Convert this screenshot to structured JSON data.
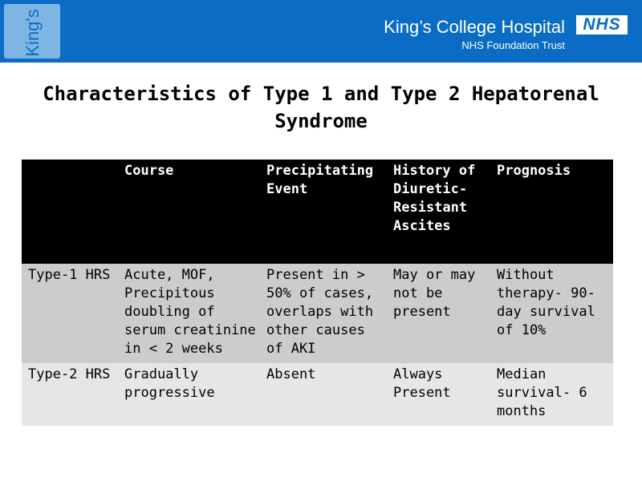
{
  "header": {
    "logo_text": "King's",
    "hospital_name": "King’s College Hospital",
    "trust_name": "NHS Foundation Trust",
    "nhs_logo": "NHS",
    "banner_color": "#0a6cc4"
  },
  "slide": {
    "title_line1": "Characteristics of Type 1 and Type 2 Hepatorenal",
    "title_line2": "Syndrome"
  },
  "table": {
    "columns": [
      "",
      "Course",
      "Precipitating Event",
      "History of Diuretic-Resistant Ascites",
      "Prognosis"
    ],
    "rows": [
      {
        "type": "Type-1 HRS",
        "course": "Acute, MOF, Precipitous doubling of serum creatinine in < 2 weeks",
        "event": "Present in > 50% of cases, overlaps with other causes of AKI",
        "history": "May or may not be present",
        "prognosis": "Without therapy- 90-day survival of 10%"
      },
      {
        "type": "Type-2 HRS",
        "course": "Gradually progressive",
        "event": "Absent",
        "history": "Always Present",
        "prognosis": "Median survival- 6 months"
      }
    ]
  }
}
